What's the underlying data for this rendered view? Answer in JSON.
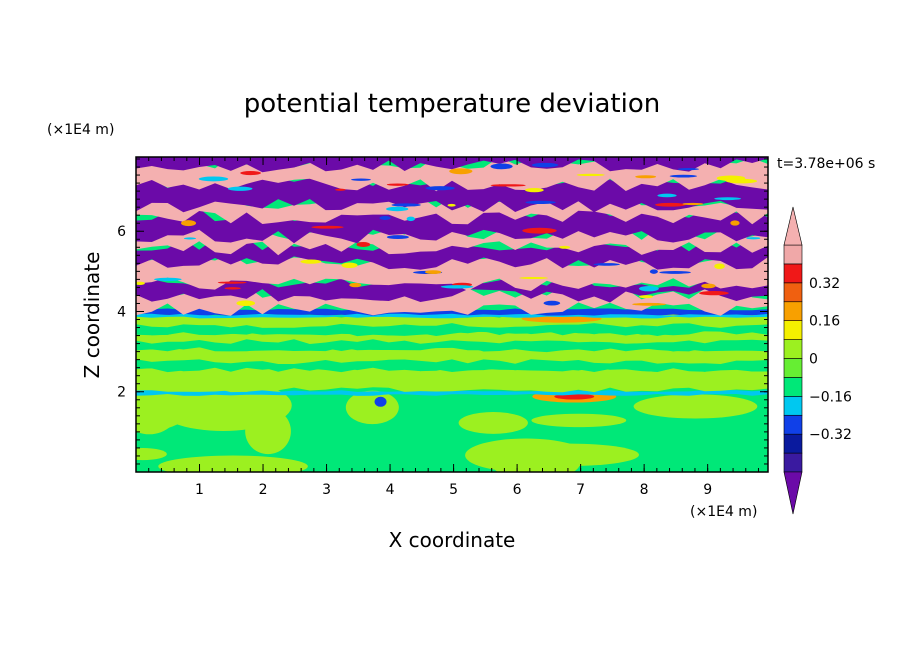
{
  "chart_data": {
    "type": "heatmap",
    "title": "potential temperature deviation",
    "time_label": "t=3.78e+06 s",
    "xlabel": "X coordinate",
    "ylabel": "Z coordinate",
    "x_unit": "(×1E4 m)",
    "y_unit": "(×1E4 m)",
    "xlim": [
      0,
      9.95
    ],
    "ylim": [
      0,
      7.85
    ],
    "x_ticks": [
      "1",
      "2",
      "3",
      "4",
      "5",
      "6",
      "7",
      "8",
      "9"
    ],
    "y_ticks": [
      "2",
      "4",
      "6"
    ],
    "colorbar": {
      "labels": [
        "0.32",
        "0.16",
        "0",
        "−0.16",
        "−0.32"
      ],
      "levels": [
        -0.48,
        -0.4,
        -0.32,
        -0.24,
        -0.16,
        -0.08,
        0,
        0.08,
        0.16,
        0.24,
        0.32,
        0.4,
        0.48
      ],
      "colors": [
        "#6b0aa8",
        "#3a1aa0",
        "#0a1a9e",
        "#1040e8",
        "#00c8f0",
        "#00e878",
        "#66ee33",
        "#9cf020",
        "#f4f000",
        "#f8a000",
        "#f06010",
        "#f01818",
        "#f0a8a8",
        "#f4b0b0"
      ],
      "extend": "both"
    },
    "field_bands": [
      {
        "z_range": [
          0,
          1.9
        ],
        "pattern": "mixed green and light green with a small orange anomaly near x=6.5 to 7.5"
      },
      {
        "z_range": [
          1.9,
          2.05
        ],
        "pattern": "thin cyan-blue layer"
      },
      {
        "z_range": [
          2.05,
          3.9
        ],
        "pattern": "horizontal green and light green layers"
      },
      {
        "z_range": [
          3.9,
          4.05
        ],
        "pattern": "thin blue and cyan layer"
      },
      {
        "z_range": [
          4.05,
          7.85
        ],
        "pattern": "alternating purple and pink layers with red, yellow and cyan edges"
      }
    ]
  }
}
